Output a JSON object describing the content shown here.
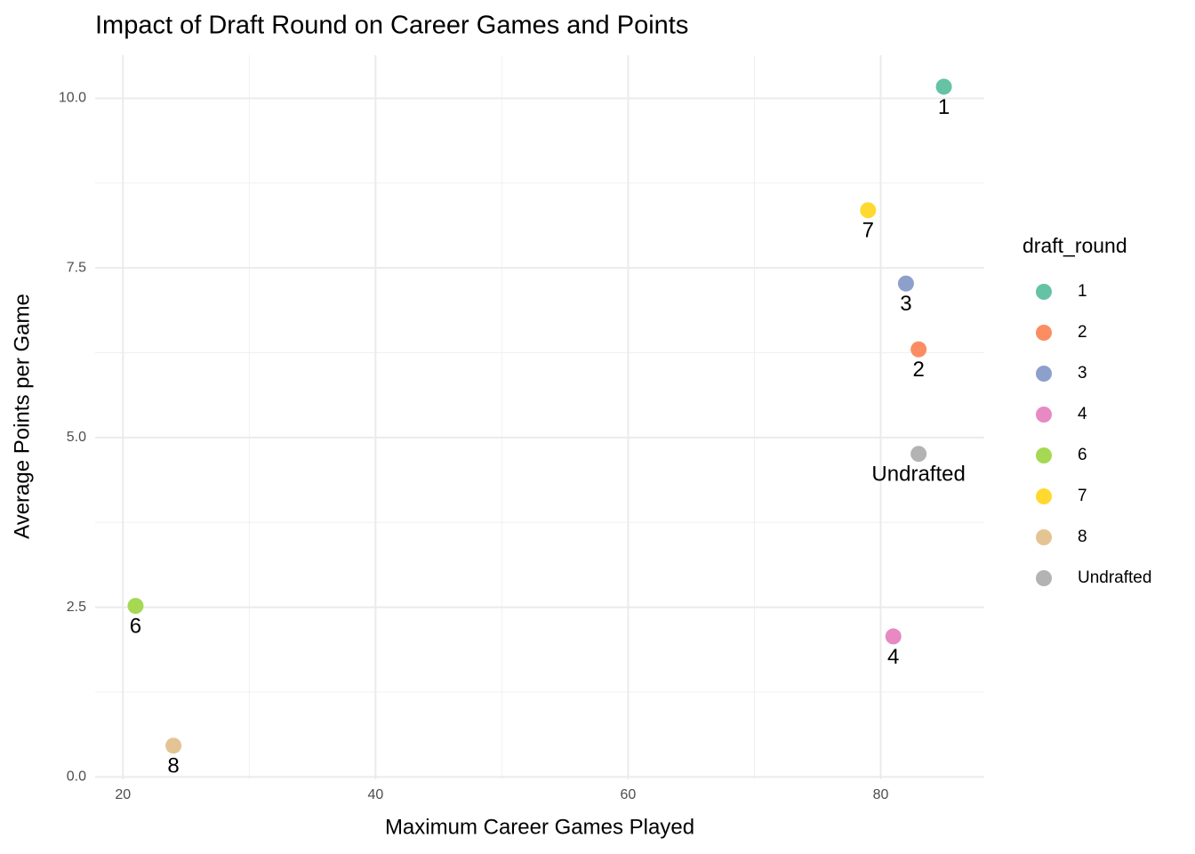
{
  "chart_data": {
    "type": "scatter",
    "title": "Impact of Draft Round on Career Games and Points",
    "x_label": "Maximum Career Games Played",
    "y_label": "Average Points per Game",
    "legend_title": "draft_round",
    "legend": "right",
    "grid": true,
    "xlim": [
      17.8,
      88.2
    ],
    "ylim": [
      -0.035,
      10.635
    ],
    "xticks": [
      20,
      40,
      60,
      80
    ],
    "yticks": [
      {
        "value": 0,
        "label": "0.0"
      },
      2.5,
      {
        "value": 5,
        "label": "5.0"
      },
      7.5,
      {
        "value": 10,
        "label": "10.0"
      }
    ],
    "series": [
      {
        "name": "1",
        "color": "#66c2a5",
        "x": [
          85
        ],
        "values": [
          10.17
        ]
      },
      {
        "name": "2",
        "color": "#fc8d62",
        "x": [
          83
        ],
        "values": [
          6.3
        ]
      },
      {
        "name": "3",
        "color": "#8da0cb",
        "x": [
          82
        ],
        "values": [
          7.27
        ]
      },
      {
        "name": "4",
        "color": "#e78ac3",
        "x": [
          81
        ],
        "values": [
          2.07
        ]
      },
      {
        "name": "6",
        "color": "#a6d854",
        "x": [
          21
        ],
        "values": [
          2.52
        ]
      },
      {
        "name": "7",
        "color": "#ffd92f",
        "x": [
          79
        ],
        "values": [
          8.35
        ]
      },
      {
        "name": "8",
        "color": "#e5c494",
        "x": [
          24
        ],
        "values": [
          0.46
        ]
      },
      {
        "name": "Undrafted",
        "color": "#b3b3b3",
        "x": [
          83
        ],
        "values": [
          4.76
        ]
      }
    ]
  }
}
